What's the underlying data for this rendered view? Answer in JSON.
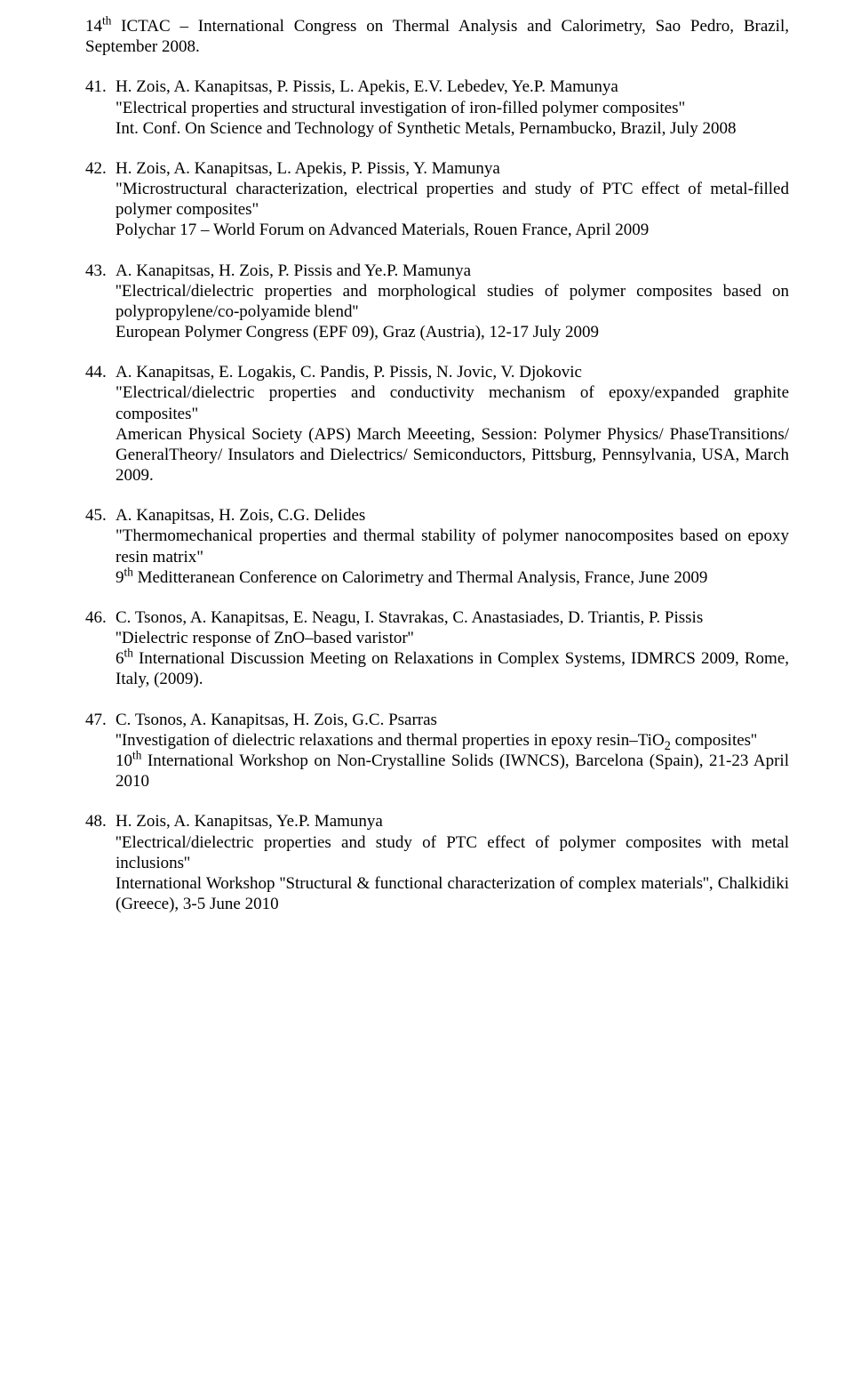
{
  "prelist": {
    "line1_a": "14",
    "line1_sup": "th",
    "line1_b": " ICTAC – International Congress on Thermal Analysis and Calorimetry, Sao Pedro, Brazil, September 2008."
  },
  "refs": {
    "r41": {
      "num": "41.",
      "authors": "H. Zois, A. Kanapitsas, P. Pissis, L. Apekis, E.V. Lebedev, Ye.P. Mamunya",
      "title": "\"Electrical properties and structural investigation of iron-filled polymer composites\"",
      "venue": "Int. Conf. On Science and Technology of Synthetic Metals, Pernambucko, Brazil, July 2008"
    },
    "r42": {
      "num": "42.",
      "authors": "H. Zois, A. Kanapitsas, L. Apekis, P. Pissis, Y. Mamunya",
      "title": "\"Microstructural characterization, electrical properties and study of PTC effect of metal-filled polymer composites\"",
      "venue": "Polychar 17 – World Forum on Advanced Materials, Rouen France, April 2009"
    },
    "r43": {
      "num": "43.",
      "authors": "A. Kanapitsas, H. Zois, P. Pissis and Ye.P. Mamunya",
      "title": "''Electrical/dielectric properties and morphological studies of polymer composites based on polypropylene/co-polyamide blend''",
      "venue": "European Polymer Congress (EPF 09), Graz (Austria), 12-17 July 2009"
    },
    "r44": {
      "num": "44.",
      "authors": "A. Kanapitsas, E. Logakis, C. Pandis, P. Pissis, N. Jovic, V. Djokovic",
      "title": "\"Electrical/dielectric properties and conductivity mechanism of epoxy/expanded graphite composites\"",
      "venue": "American Physical Society (APS) March Meeeting, Session: Polymer Physics/ PhaseTransitions/ GeneralTheory/ Insulators and Dielectrics/ Semiconductors, Pittsburg, Pennsylvania, USA, March 2009."
    },
    "r45": {
      "num": "45.",
      "authors": "A. Kanapitsas, H. Zois, C.G. Delides",
      "title": "\"Thermomechanical properties and thermal stability of polymer nanocomposites based on epoxy resin matrix\"",
      "venue_a": "9",
      "venue_sup": "th",
      "venue_b": " Meditteranean Conference on Calorimetry and Thermal Analysis, France, June 2009"
    },
    "r46": {
      "num": "46.",
      "authors": "C. Tsonos, A. Kanapitsas, E. Neagu, I. Stavrakas, C. Anastasiades, D. Triantis, P. Pissis",
      "title": "''Dielectric response of ZnO–based varistor''",
      "venue_a": "6",
      "venue_sup": "th",
      "venue_b": " International Discussion Meeting on Relaxations in Complex Systems, IDMRCS 2009, Rome, Italy, (2009)."
    },
    "r47": {
      "num": "47.",
      "authors": "C. Tsonos, A. Kanapitsas, H. Zois, G.C. Psarras",
      "title_a": "''Investigation of dielectric relaxations and thermal properties in epoxy resin–TiO",
      "title_sub": "2",
      "title_b": " composites''",
      "venue_a": "10",
      "venue_sup": "th",
      "venue_b": " International Workshop on Non-Crystalline Solids (IWNCS), Barcelona (Spain), 21-23 April 2010"
    },
    "r48": {
      "num": "48.",
      "authors": "H. Zois, A. Kanapitsas, Ye.P. Mamunya",
      "title": "''Electrical/dielectric properties and study of PTC effect of polymer composites with metal inclusions''",
      "venue": "International Workshop ''Structural & functional characterization of complex materials'', Chalkidiki (Greece), 3-5 June 2010"
    }
  }
}
